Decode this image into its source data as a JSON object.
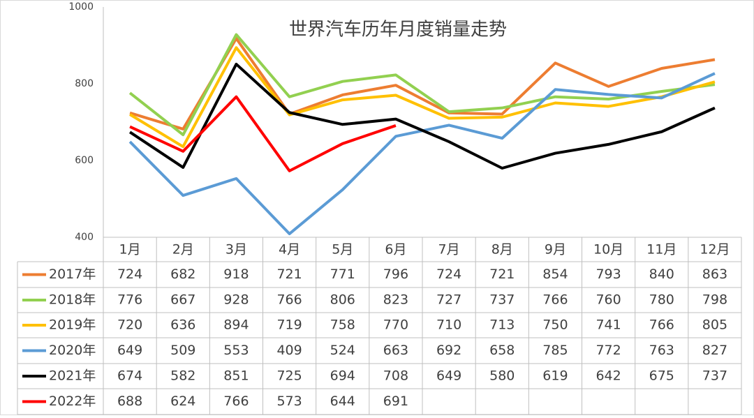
{
  "chart_data": {
    "type": "line",
    "title": "世界汽车历年月度销量走势",
    "categories": [
      "1月",
      "2月",
      "3月",
      "4月",
      "5月",
      "6月",
      "7月",
      "8月",
      "9月",
      "10月",
      "11月",
      "12月"
    ],
    "series": [
      {
        "name": "2017年",
        "color": "#ed7d31",
        "values": [
          724,
          682,
          918,
          721,
          771,
          796,
          724,
          721,
          854,
          793,
          840,
          863
        ]
      },
      {
        "name": "2018年",
        "color": "#92d050",
        "values": [
          776,
          667,
          928,
          766,
          806,
          823,
          727,
          737,
          766,
          760,
          780,
          798
        ]
      },
      {
        "name": "2019年",
        "color": "#ffc000",
        "values": [
          720,
          636,
          894,
          719,
          758,
          770,
          710,
          713,
          750,
          741,
          766,
          805
        ]
      },
      {
        "name": "2020年",
        "color": "#5b9bd5",
        "values": [
          649,
          509,
          553,
          409,
          524,
          663,
          692,
          658,
          785,
          772,
          763,
          827
        ]
      },
      {
        "name": "2021年",
        "color": "#000000",
        "values": [
          674,
          582,
          851,
          725,
          694,
          708,
          649,
          580,
          619,
          642,
          675,
          737
        ]
      },
      {
        "name": "2022年",
        "color": "#ff0000",
        "values": [
          688,
          624,
          766,
          573,
          644,
          691,
          null,
          null,
          null,
          null,
          null,
          null
        ]
      }
    ],
    "ylim": [
      400,
      1000
    ],
    "yticks": [
      400,
      600,
      800,
      1000
    ],
    "grid": false
  }
}
